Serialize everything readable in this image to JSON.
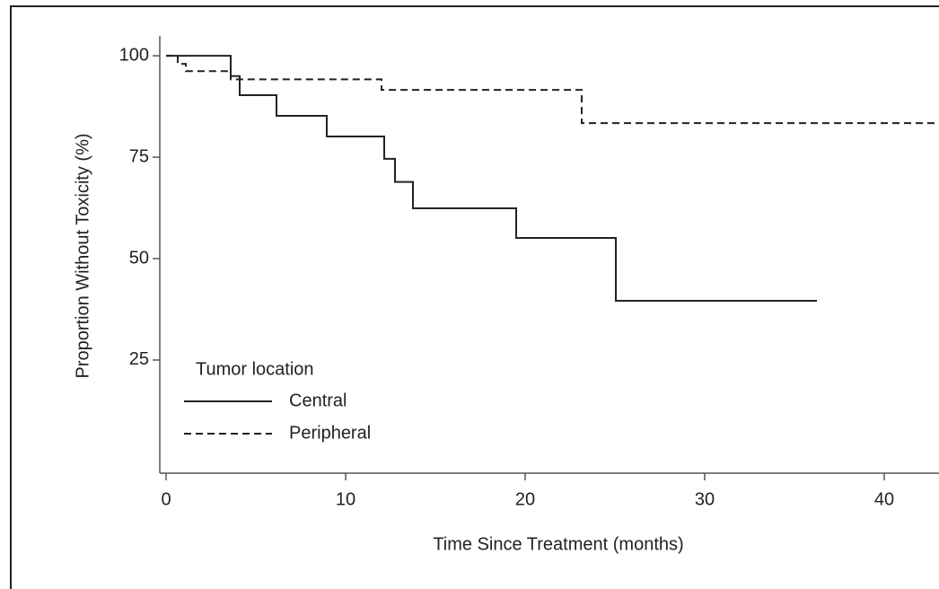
{
  "chart_data": {
    "type": "step",
    "xlabel": "Time Since Treatment (months)",
    "ylabel": "Proportion Without Toxicity (%)",
    "xlim": [
      -0.35,
      43.05
    ],
    "xticks": [
      0,
      10,
      20,
      30,
      40
    ],
    "ylim": [
      -2.9,
      104.9
    ],
    "yticks": [
      25,
      50,
      75,
      100
    ],
    "legend_title": "Tumor location",
    "legend_position": "lower left",
    "series": [
      {
        "name": "Central",
        "color": "#222222",
        "dash": "solid",
        "x": [
          0,
          3.6,
          4.1,
          6.15,
          8.95,
          12.15,
          12.75,
          13.75,
          19.5,
          25.05,
          36.25
        ],
        "values": [
          100,
          95,
          90.3,
          85.2,
          80.1,
          74.6,
          68.9,
          62.4,
          55.1,
          39.6,
          39.6
        ]
      },
      {
        "name": "Peripheral",
        "color": "#222222",
        "dash": "dashed",
        "x": [
          0,
          0.65,
          1.1,
          3.6,
          12,
          23.15,
          43
        ],
        "values": [
          100,
          98,
          96.2,
          94.2,
          91.6,
          83.4,
          83.4
        ]
      }
    ]
  }
}
